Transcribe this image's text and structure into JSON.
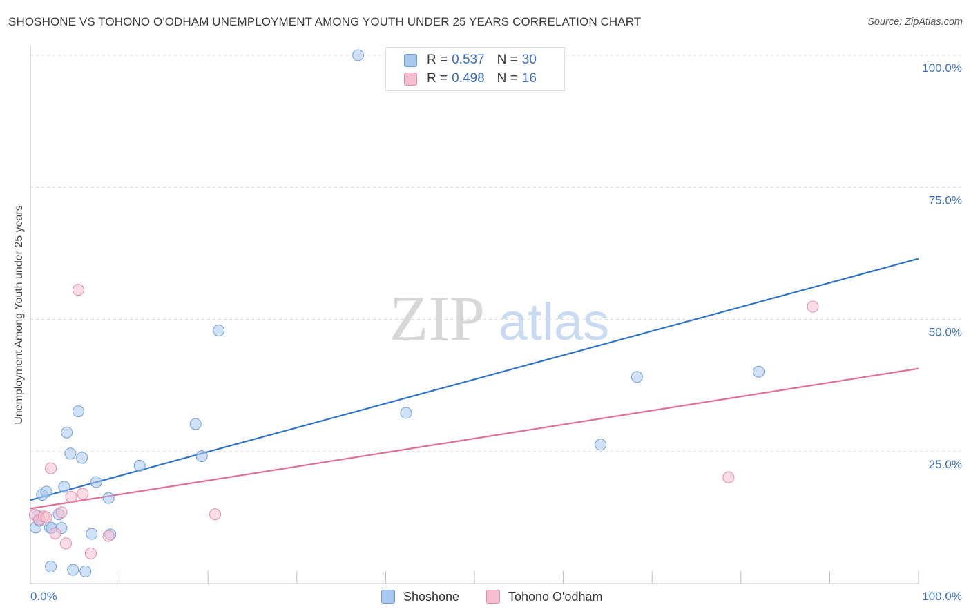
{
  "title": "SHOSHONE VS TOHONO O'ODHAM UNEMPLOYMENT AMONG YOUTH UNDER 25 YEARS CORRELATION CHART",
  "source": "Source: ZipAtlas.com",
  "watermark": {
    "zip": "ZIP",
    "atlas": "atlas"
  },
  "legend": {
    "rows": [
      {
        "r_label": "R =",
        "r_value": "0.537",
        "n_label": "N =",
        "n_value": "30"
      },
      {
        "r_label": "R =",
        "r_value": "0.498",
        "n_label": "N =",
        "n_value": "16"
      }
    ]
  },
  "colors": {
    "shoshone_fill": "#a9c8f0",
    "shoshone_stroke": "#6f9fd8",
    "shoshone_line": "#2f74c8",
    "tohono_fill": "#f5bfd0",
    "tohono_stroke": "#e48aaa",
    "tohono_line": "#e06e99",
    "tick_label": "#3b6fc4",
    "grid": "#dedede"
  },
  "chart_data": {
    "type": "scatter",
    "title": "SHOSHONE VS TOHONO O'ODHAM UNEMPLOYMENT AMONG YOUTH UNDER 25 YEARS CORRELATION CHART",
    "xlabel": "",
    "ylabel": "Unemployment Among Youth under 25 years",
    "xlim": [
      0,
      100
    ],
    "ylim": [
      0,
      100
    ],
    "x_tick_labels": [
      "0.0%",
      "100.0%"
    ],
    "y_ticks": [
      25,
      50,
      75,
      100
    ],
    "y_tick_labels": [
      "25.0%",
      "50.0%",
      "75.0%",
      "100.0%"
    ],
    "series": [
      {
        "name": "Shoshone",
        "r": 0.537,
        "n": 30,
        "points": [
          [
            0.6,
            10.6
          ],
          [
            0.8,
            12.8
          ],
          [
            1.0,
            11.9
          ],
          [
            1.3,
            16.8
          ],
          [
            1.8,
            17.4
          ],
          [
            2.2,
            10.6
          ],
          [
            2.3,
            3.2
          ],
          [
            2.4,
            10.5
          ],
          [
            3.2,
            13.1
          ],
          [
            3.5,
            10.5
          ],
          [
            3.8,
            18.3
          ],
          [
            4.1,
            28.6
          ],
          [
            4.5,
            24.6
          ],
          [
            4.8,
            2.6
          ],
          [
            5.4,
            32.6
          ],
          [
            5.8,
            23.8
          ],
          [
            6.2,
            2.3
          ],
          [
            6.9,
            9.4
          ],
          [
            7.4,
            19.2
          ],
          [
            8.8,
            16.2
          ],
          [
            9.0,
            9.3
          ],
          [
            12.3,
            22.3
          ],
          [
            18.6,
            30.2
          ],
          [
            19.3,
            24.1
          ],
          [
            21.2,
            47.9
          ],
          [
            36.9,
            100.0
          ],
          [
            42.3,
            32.3
          ],
          [
            64.2,
            26.3
          ],
          [
            68.3,
            39.1
          ],
          [
            82.0,
            40.1
          ]
        ],
        "trend": {
          "x": [
            0,
            100
          ],
          "y": [
            15.8,
            61.5
          ]
        }
      },
      {
        "name": "Tohono O'odham",
        "r": 0.498,
        "n": 16,
        "points": [
          [
            0.5,
            13.0
          ],
          [
            1.0,
            12.1
          ],
          [
            1.5,
            12.7
          ],
          [
            1.8,
            12.5
          ],
          [
            2.3,
            21.8
          ],
          [
            2.8,
            9.5
          ],
          [
            3.5,
            13.5
          ],
          [
            4.0,
            7.6
          ],
          [
            4.6,
            16.4
          ],
          [
            5.4,
            55.6
          ],
          [
            5.9,
            17.0
          ],
          [
            6.8,
            5.7
          ],
          [
            8.8,
            9.0
          ],
          [
            20.8,
            13.1
          ],
          [
            78.6,
            20.1
          ],
          [
            88.1,
            52.4
          ]
        ],
        "trend": {
          "x": [
            0,
            100
          ],
          "y": [
            14.2,
            40.7
          ]
        }
      }
    ]
  },
  "bottom_legend": [
    "Shoshone",
    "Tohono O'odham"
  ]
}
